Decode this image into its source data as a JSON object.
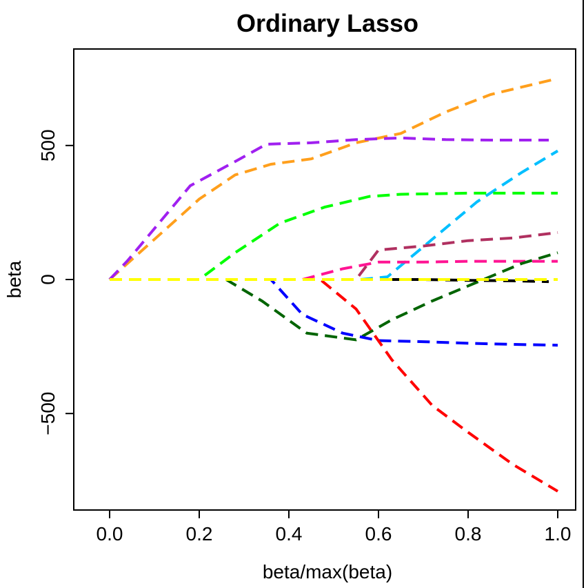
{
  "chart_data": {
    "type": "line",
    "title": "Ordinary Lasso",
    "xlabel": "beta/max(beta)",
    "ylabel": "beta",
    "xlim": [
      -0.08,
      1.04
    ],
    "ylim": [
      -860,
      860
    ],
    "x_ticks": [
      0.0,
      0.2,
      0.4,
      0.6,
      0.8,
      1.0
    ],
    "x_tick_labels": [
      "0.0",
      "0.2",
      "0.4",
      "0.6",
      "0.8",
      "1.0"
    ],
    "y_ticks": [
      -500,
      0,
      500
    ],
    "y_tick_labels": [
      "−500",
      "0",
      "500"
    ],
    "grid": false,
    "legend": "none",
    "series": [
      {
        "color": "#ff9f1c",
        "dashed": true,
        "points": [
          [
            0.0,
            0
          ],
          [
            0.2,
            300
          ],
          [
            0.28,
            390
          ],
          [
            0.36,
            430
          ],
          [
            0.45,
            450
          ],
          [
            0.55,
            510
          ],
          [
            0.65,
            545
          ],
          [
            0.75,
            625
          ],
          [
            0.85,
            690
          ],
          [
            1.0,
            750
          ]
        ]
      },
      {
        "color": "#a020f0",
        "dashed": true,
        "points": [
          [
            0.0,
            0
          ],
          [
            0.04,
            70
          ],
          [
            0.18,
            350
          ],
          [
            0.28,
            440
          ],
          [
            0.35,
            505
          ],
          [
            0.45,
            510
          ],
          [
            0.55,
            522
          ],
          [
            0.65,
            528
          ],
          [
            0.75,
            522
          ],
          [
            0.85,
            520
          ],
          [
            0.98,
            520
          ]
        ]
      },
      {
        "color": "#00bfff",
        "dashed": true,
        "points": [
          [
            0.0,
            0
          ],
          [
            0.56,
            0
          ],
          [
            0.62,
            10
          ],
          [
            0.72,
            150
          ],
          [
            0.82,
            290
          ],
          [
            0.92,
            400
          ],
          [
            1.0,
            480
          ]
        ]
      },
      {
        "color": "#00ff00",
        "dashed": true,
        "points": [
          [
            0.0,
            0
          ],
          [
            0.2,
            0
          ],
          [
            0.28,
            100
          ],
          [
            0.38,
            210
          ],
          [
            0.48,
            270
          ],
          [
            0.58,
            310
          ],
          [
            0.65,
            318
          ],
          [
            0.8,
            322
          ],
          [
            1.0,
            322
          ]
        ]
      },
      {
        "color": "#b03060",
        "dashed": true,
        "points": [
          [
            0.0,
            0
          ],
          [
            0.55,
            0
          ],
          [
            0.6,
            110
          ],
          [
            0.7,
            125
          ],
          [
            0.8,
            145
          ],
          [
            0.9,
            155
          ],
          [
            1.0,
            175
          ]
        ]
      },
      {
        "color": "#ff1493",
        "dashed": true,
        "points": [
          [
            0.0,
            0
          ],
          [
            0.43,
            0
          ],
          [
            0.52,
            40
          ],
          [
            0.6,
            65
          ],
          [
            0.7,
            65
          ],
          [
            0.8,
            68
          ],
          [
            1.0,
            68
          ]
        ]
      },
      {
        "color": "#006400",
        "dashed": true,
        "points": [
          [
            0.0,
            0
          ],
          [
            0.26,
            0
          ],
          [
            0.34,
            -80
          ],
          [
            0.44,
            -200
          ],
          [
            0.55,
            -225
          ],
          [
            0.63,
            -150
          ],
          [
            0.72,
            -80
          ],
          [
            0.82,
            -10
          ],
          [
            0.92,
            60
          ],
          [
            1.0,
            100
          ]
        ]
      },
      {
        "color": "#0000ff",
        "dashed": true,
        "points": [
          [
            0.0,
            0
          ],
          [
            0.36,
            0
          ],
          [
            0.43,
            -130
          ],
          [
            0.52,
            -200
          ],
          [
            0.6,
            -228
          ],
          [
            0.7,
            -232
          ],
          [
            0.8,
            -238
          ],
          [
            0.9,
            -242
          ],
          [
            1.0,
            -245
          ]
        ]
      },
      {
        "color": "#ff0000",
        "dashed": true,
        "points": [
          [
            0.0,
            0
          ],
          [
            0.47,
            0
          ],
          [
            0.55,
            -110
          ],
          [
            0.63,
            -300
          ],
          [
            0.72,
            -470
          ],
          [
            0.8,
            -570
          ],
          [
            0.9,
            -690
          ],
          [
            1.0,
            -790
          ]
        ]
      },
      {
        "color": "#000000",
        "dashed": true,
        "points": [
          [
            0.62,
            0
          ],
          [
            0.7,
            0
          ],
          [
            0.8,
            -3
          ],
          [
            0.9,
            -5
          ],
          [
            0.98,
            -8
          ]
        ]
      },
      {
        "color": "#ffff00",
        "dashed": false,
        "points": [
          [
            0.0,
            0
          ],
          [
            1.0,
            0
          ]
        ]
      }
    ]
  }
}
